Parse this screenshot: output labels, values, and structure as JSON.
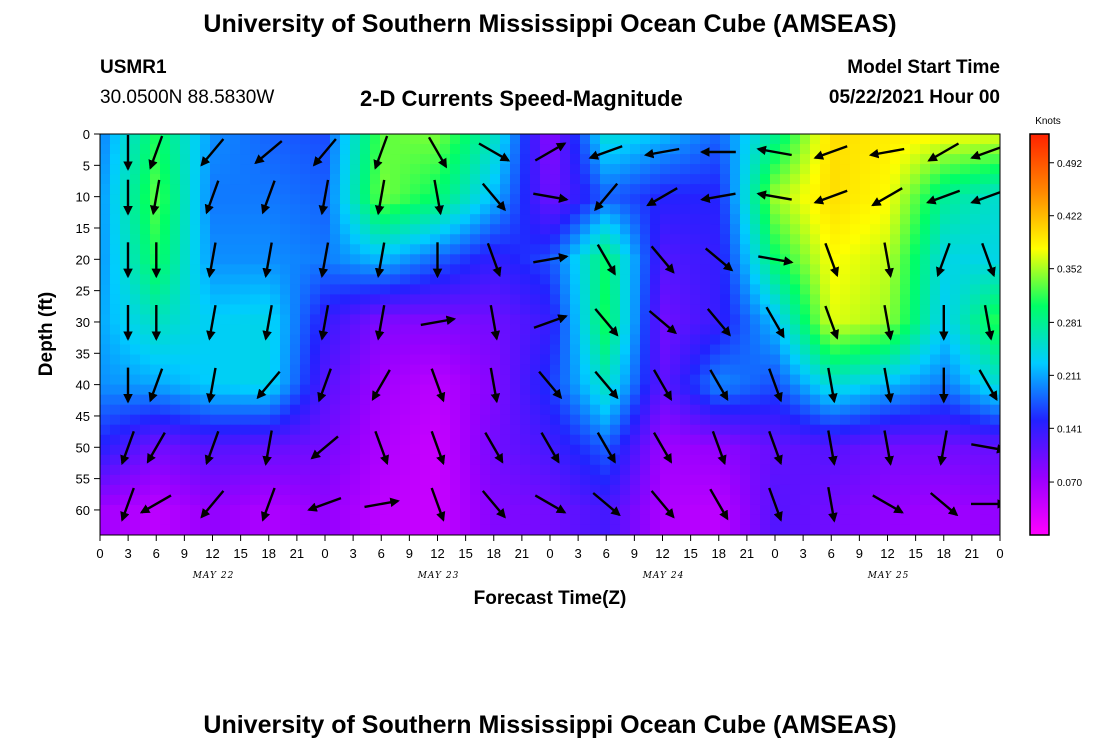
{
  "header": {
    "title": "University of Southern Mississippi Ocean Cube (AMSEAS)",
    "station": "USMR1",
    "coords": "30.0500N  88.5830W",
    "plot_title": "2-D Currents Speed-Magnitude",
    "model_start_label": "Model Start Time",
    "model_start_value": "05/22/2021 Hour 00"
  },
  "footer": {
    "title": "University of Southern Mississippi Ocean Cube (AMSEAS)"
  },
  "chart_data": {
    "type": "heatmap",
    "xlabel": "Forecast Time(Z)",
    "ylabel": "Depth (ft)",
    "x_tick_labels": [
      "0",
      "3",
      "6",
      "9",
      "12",
      "15",
      "18",
      "21",
      "0",
      "3",
      "6",
      "9",
      "12",
      "15",
      "18",
      "21",
      "0",
      "3",
      "6",
      "9",
      "12",
      "15",
      "18",
      "21",
      "0",
      "3",
      "6",
      "9",
      "12",
      "15",
      "18",
      "21",
      "0"
    ],
    "x_range_hours": [
      0,
      96
    ],
    "day_labels": [
      {
        "label": "MAY 22",
        "hour": 12
      },
      {
        "label": "MAY 23",
        "hour": 36
      },
      {
        "label": "MAY 24",
        "hour": 60
      },
      {
        "label": "MAY 25",
        "hour": 84
      }
    ],
    "y_tick_labels": [
      "0",
      "5",
      "10",
      "15",
      "20",
      "25",
      "30",
      "35",
      "40",
      "45",
      "50",
      "55",
      "60"
    ],
    "y_range_ft": [
      0,
      64
    ],
    "y_inverted": true,
    "colorbar": {
      "unit": "Knots",
      "tick_labels": [
        "0.492",
        "0.422",
        "0.352",
        "0.281",
        "0.211",
        "0.141",
        "0.070"
      ],
      "range": [
        0,
        0.53
      ],
      "colors": [
        "#ff00ff",
        "#9900ff",
        "#2222ff",
        "#00ccff",
        "#00ff66",
        "#ffff00",
        "#ff8800",
        "#ff2200"
      ]
    },
    "speed_grid_hours": [
      0,
      6,
      12,
      18,
      24,
      30,
      36,
      42,
      48,
      54,
      60,
      66,
      72,
      78,
      84,
      90,
      96
    ],
    "speed_grid_depths_ft": [
      0,
      10,
      20,
      30,
      40,
      50,
      60
    ],
    "speed_grid_knots": [
      [
        0.19,
        0.31,
        0.2,
        0.18,
        0.17,
        0.33,
        0.34,
        0.26,
        0.08,
        0.25,
        0.22,
        0.18,
        0.28,
        0.4,
        0.39,
        0.38,
        0.37
      ],
      [
        0.2,
        0.33,
        0.19,
        0.19,
        0.18,
        0.34,
        0.3,
        0.22,
        0.1,
        0.18,
        0.15,
        0.15,
        0.35,
        0.4,
        0.38,
        0.28,
        0.25
      ],
      [
        0.2,
        0.31,
        0.2,
        0.2,
        0.19,
        0.22,
        0.18,
        0.14,
        0.17,
        0.3,
        0.12,
        0.14,
        0.3,
        0.38,
        0.36,
        0.24,
        0.24
      ],
      [
        0.21,
        0.26,
        0.23,
        0.24,
        0.14,
        0.09,
        0.09,
        0.1,
        0.14,
        0.31,
        0.1,
        0.14,
        0.22,
        0.37,
        0.35,
        0.23,
        0.32
      ],
      [
        0.2,
        0.21,
        0.23,
        0.24,
        0.12,
        0.07,
        0.05,
        0.09,
        0.16,
        0.26,
        0.11,
        0.2,
        0.17,
        0.25,
        0.22,
        0.19,
        0.25
      ],
      [
        0.15,
        0.1,
        0.12,
        0.11,
        0.1,
        0.06,
        0.04,
        0.1,
        0.13,
        0.18,
        0.07,
        0.08,
        0.11,
        0.12,
        0.1,
        0.1,
        0.11
      ],
      [
        0.07,
        0.05,
        0.08,
        0.06,
        0.08,
        0.05,
        0.04,
        0.09,
        0.1,
        0.13,
        0.06,
        0.05,
        0.12,
        0.1,
        0.08,
        0.07,
        0.08
      ]
    ],
    "vector_directions_deg": [
      [
        180,
        200,
        220,
        230,
        220,
        200,
        150,
        120,
        60,
        250,
        260,
        270,
        280,
        250,
        260,
        240,
        250
      ],
      [
        180,
        190,
        200,
        200,
        190,
        190,
        170,
        140,
        100,
        220,
        240,
        260,
        280,
        250,
        240,
        250,
        250
      ],
      [
        180,
        180,
        190,
        190,
        190,
        190,
        180,
        160,
        80,
        150,
        140,
        130,
        100,
        160,
        170,
        200,
        160
      ],
      [
        180,
        180,
        190,
        190,
        190,
        190,
        80,
        170,
        70,
        140,
        130,
        140,
        150,
        160,
        170,
        180,
        170
      ],
      [
        180,
        200,
        190,
        220,
        200,
        210,
        160,
        170,
        140,
        140,
        150,
        150,
        160,
        170,
        170,
        180,
        150
      ],
      [
        200,
        210,
        200,
        190,
        230,
        160,
        160,
        150,
        150,
        150,
        150,
        160,
        160,
        170,
        170,
        190,
        100
      ],
      [
        200,
        240,
        220,
        200,
        250,
        80,
        160,
        140,
        120,
        130,
        140,
        150,
        160,
        170,
        120,
        130,
        90
      ]
    ]
  }
}
